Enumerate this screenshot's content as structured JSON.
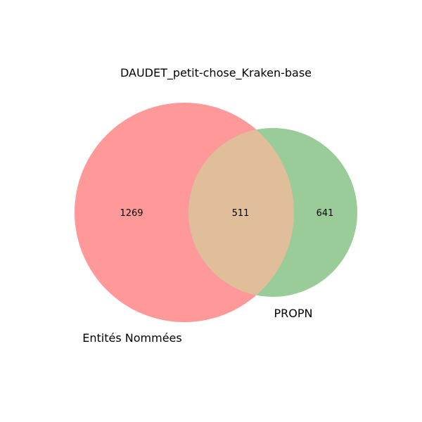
{
  "title": "DAUDET_petit-chose_Kraken-base",
  "sets": [
    {
      "label": "Entités Nommées",
      "color": "#ff9999",
      "only_count": "1269"
    },
    {
      "label": "PROPN",
      "color": "#99cc99",
      "only_count": "641"
    }
  ],
  "intersection": {
    "count": "511",
    "color": "#e0be99"
  },
  "chart_data": {
    "type": "venn",
    "title": "DAUDET_petit-chose_Kraken-base",
    "sets": [
      "Entités Nommées",
      "PROPN"
    ],
    "regions": [
      {
        "sets": [
          "Entités Nommées"
        ],
        "value": 1269
      },
      {
        "sets": [
          "Entités Nommées",
          "PROPN"
        ],
        "value": 511
      },
      {
        "sets": [
          "PROPN"
        ],
        "value": 641
      }
    ]
  }
}
